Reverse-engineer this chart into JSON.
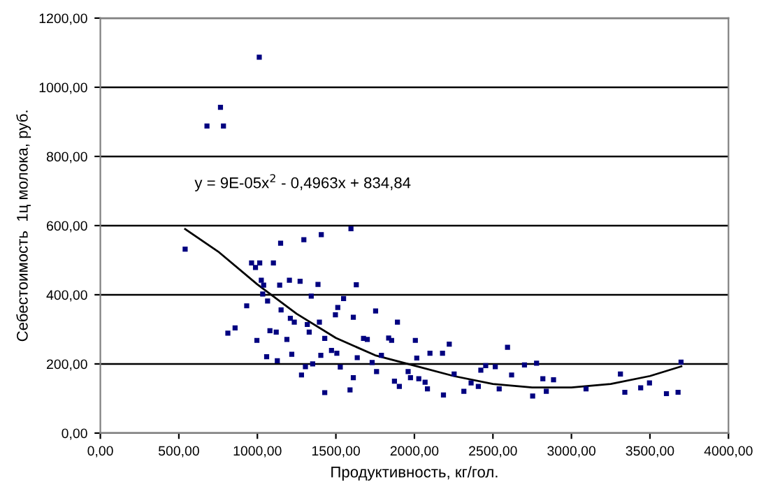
{
  "chart_data": {
    "type": "scatter",
    "xlabel": "Продуктивность, кг/гол.",
    "ylabel": "Себестоимость  1ц молока, руб.",
    "annotations": [
      "y = 9E-05x$^{2}$ - 0,4963x + 834,84"
    ],
    "xlim": [
      0,
      4000
    ],
    "ylim": [
      0,
      1200
    ],
    "xticks": [
      {
        "value": 0,
        "label": "0,00"
      },
      {
        "value": 500,
        "label": "500,00"
      },
      {
        "value": 1000,
        "label": "1000,00"
      },
      {
        "value": 1500,
        "label": "1500,00"
      },
      {
        "value": 2000,
        "label": "2000,00"
      },
      {
        "value": 2500,
        "label": "2500,00"
      },
      {
        "value": 3000,
        "label": "3000,00"
      },
      {
        "value": 3500,
        "label": "3500,00"
      },
      {
        "value": 4000,
        "label": "4000,00"
      }
    ],
    "yticks": [
      {
        "value": 0,
        "label": "0,00"
      },
      {
        "value": 200,
        "label": "200,00"
      },
      {
        "value": 400,
        "label": "400,00"
      },
      {
        "value": 600,
        "label": "600,00"
      },
      {
        "value": 800,
        "label": "800,00"
      },
      {
        "value": 1000,
        "label": "1000,00"
      },
      {
        "value": 1200,
        "label": "1200,00"
      }
    ],
    "grid": "y",
    "legend": false,
    "marker": "square",
    "series": [
      {
        "color": "#000080",
        "x": [
          540,
          679,
          765,
          784,
          1012,
          812,
          858,
          932,
          963,
          988,
          997,
          1015,
          1025,
          1034,
          1040,
          1059,
          1065,
          1080,
          1102,
          1120,
          1127,
          1142,
          1148,
          1151,
          1188,
          1204,
          1210,
          1219,
          1235,
          1272,
          1281,
          1296,
          1306,
          1318,
          1330,
          1343,
          1352,
          1386,
          1395,
          1407,
          1404,
          1429,
          1429,
          1472,
          1497,
          1506,
          1512,
          1528,
          1549,
          1590,
          1596,
          1611,
          1611,
          1630,
          1636,
          1676,
          1700,
          1731,
          1753,
          1759,
          1790,
          1836,
          1855,
          1873,
          1892,
          1904,
          1960,
          1975,
          2006,
          2015,
          2028,
          2068,
          2083,
          2099,
          2179,
          2185,
          2222,
          2253,
          2315,
          2361,
          2407,
          2423,
          2454,
          2515,
          2540,
          2593,
          2619,
          2701,
          2753,
          2778,
          2818,
          2840,
          2886,
          3093,
          3312,
          3340,
          3441,
          3497,
          3605,
          3679,
          3698
        ],
        "values": [
          532,
          888,
          942,
          888,
          1087,
          289,
          304,
          368,
          492,
          479,
          268,
          492,
          442,
          402,
          428,
          221,
          382,
          296,
          492,
          292,
          209,
          428,
          549,
          356,
          271,
          442,
          332,
          228,
          321,
          439,
          168,
          559,
          192,
          314,
          292,
          396,
          200,
          430,
          321,
          574,
          225,
          117,
          274,
          239,
          342,
          231,
          363,
          191,
          389,
          125,
          591,
          335,
          160,
          429,
          218,
          274,
          271,
          204,
          353,
          178,
          225,
          275,
          268,
          150,
          321,
          135,
          178,
          160,
          268,
          217,
          157,
          147,
          128,
          231,
          231,
          110,
          257,
          171,
          121,
          145,
          135,
          182,
          195,
          192,
          128,
          248,
          168,
          197,
          107,
          202,
          157,
          121,
          154,
          128,
          171,
          118,
          131,
          145,
          114,
          118,
          205
        ]
      },
      {
        "type": "line",
        "color": "#000000",
        "marker": "none",
        "line_style": "solid",
        "x": [
          540,
          750,
          1000,
          1250,
          1500,
          1750,
          2000,
          2250,
          2500,
          2750,
          3000,
          3250,
          3500,
          3700
        ],
        "values": [
          590,
          525,
          430,
          345,
          275,
          225,
          195,
          165,
          142,
          132,
          132,
          142,
          165,
          193
        ]
      }
    ]
  }
}
